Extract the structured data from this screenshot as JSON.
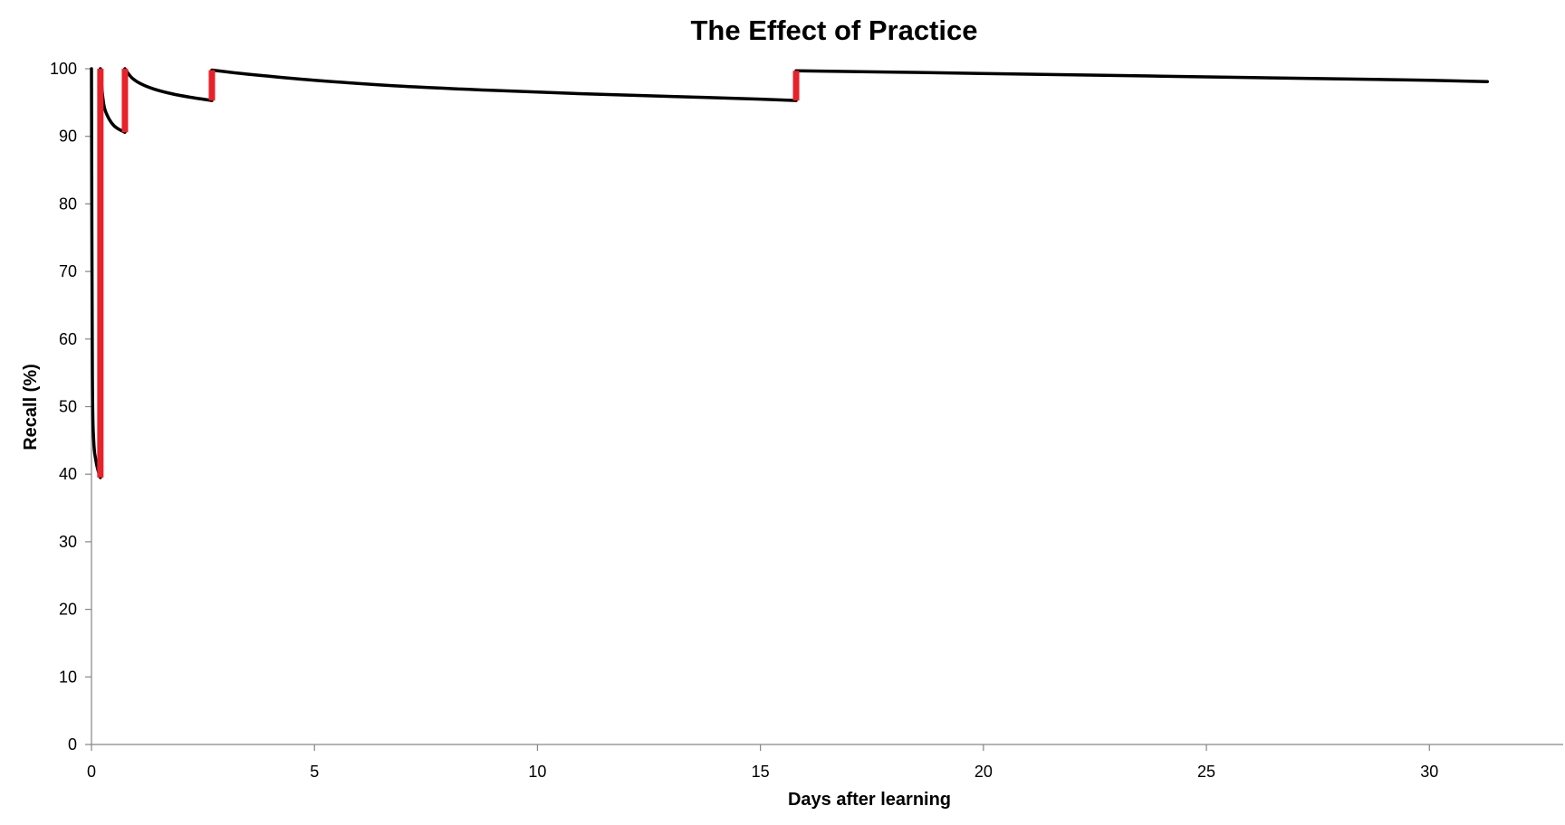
{
  "chart_data": {
    "type": "line",
    "title": "The Effect of Practice",
    "xlabel": "Days after learning",
    "ylabel": "Recall (%)",
    "xlim": [
      0,
      33
    ],
    "ylim": [
      0,
      100
    ],
    "x_ticks": [
      0,
      5,
      10,
      15,
      20,
      25,
      30
    ],
    "y_ticks": [
      0,
      10,
      20,
      30,
      40,
      50,
      60,
      70,
      80,
      90,
      100
    ],
    "grid": false,
    "legend": "none",
    "colors": {
      "curve": "#000000",
      "review": "#e8222a",
      "axis": "#868686"
    },
    "series": [
      {
        "x": [
          0,
          0.02,
          0.05,
          0.1,
          0.15,
          0.2
        ],
        "y": [
          100,
          55,
          45,
          42,
          40.5,
          39.5
        ]
      },
      {
        "x": [
          0.2,
          0.25,
          0.3,
          0.4,
          0.5,
          0.6,
          0.75
        ],
        "y": [
          100,
          96,
          94,
          92.5,
          91.6,
          91.1,
          90.6
        ]
      },
      {
        "x": [
          0.75,
          0.9,
          1.1,
          1.4,
          1.8,
          2.2,
          2.7
        ],
        "y": [
          100,
          98.7,
          97.8,
          97,
          96.3,
          95.8,
          95.3
        ]
      },
      {
        "x": [
          2.7,
          3.5,
          5,
          7,
          9,
          11,
          13,
          15,
          15.8
        ],
        "y": [
          99.8,
          99.2,
          98.3,
          97.4,
          96.8,
          96.3,
          95.9,
          95.5,
          95.3
        ]
      },
      {
        "x": [
          15.8,
          18,
          21,
          24,
          27,
          30,
          31.3
        ],
        "y": [
          99.7,
          99.5,
          99.2,
          98.9,
          98.6,
          98.3,
          98.1
        ]
      }
    ],
    "reviews": [
      {
        "x": 0.2,
        "from": 39.5,
        "to": 100
      },
      {
        "x": 0.75,
        "from": 90.6,
        "to": 100
      },
      {
        "x": 2.7,
        "from": 95.3,
        "to": 99.8
      },
      {
        "x": 15.8,
        "from": 95.3,
        "to": 99.7
      }
    ]
  }
}
